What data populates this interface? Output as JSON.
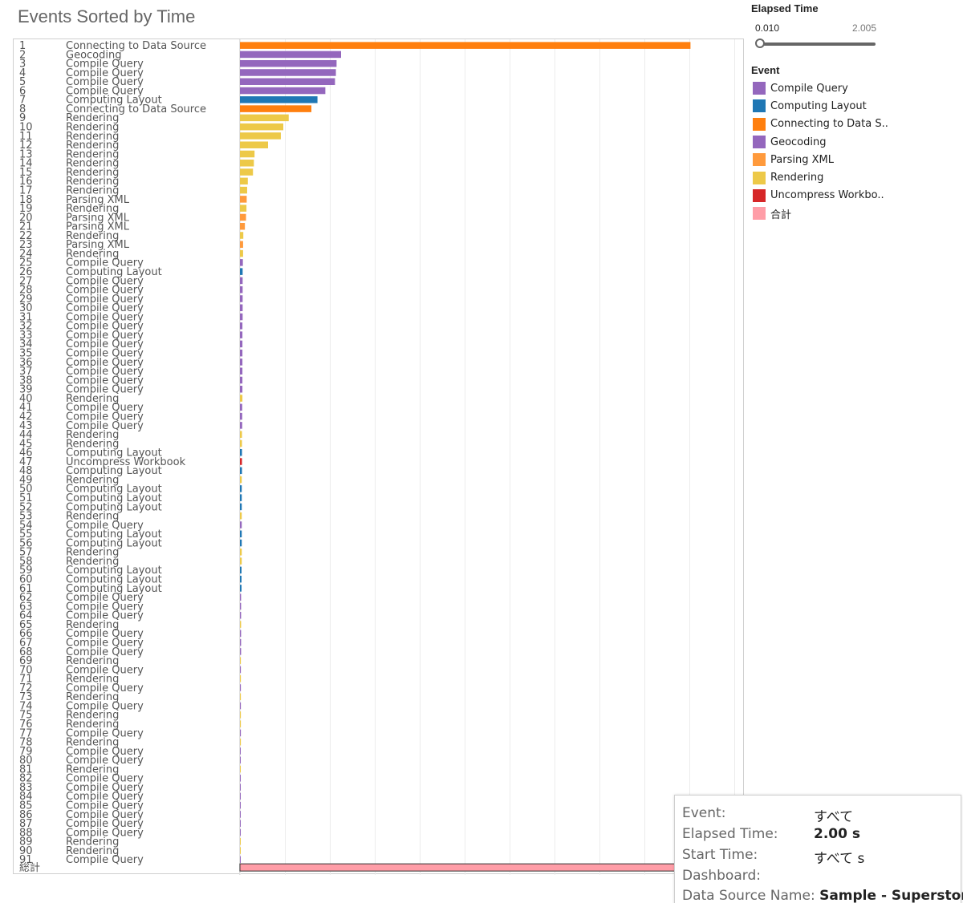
{
  "title": "Events Sorted by Time",
  "filter": {
    "title": "Elapsed Time",
    "min_label": "0.010",
    "max_label": "2.005"
  },
  "legend": {
    "title": "Event",
    "items": [
      {
        "label": "Compile Query",
        "color": "#9467bd"
      },
      {
        "label": "Computing Layout",
        "color": "#1f77b4"
      },
      {
        "label": "Connecting to Data S..",
        "color": "#ff7f0e"
      },
      {
        "label": "Geocoding",
        "color": "#9467bd"
      },
      {
        "label": "Parsing XML",
        "color": "#ff9a3c"
      },
      {
        "label": "Rendering",
        "color": "#edc948"
      },
      {
        "label": "Uncompress Workbo..",
        "color": "#d62728"
      },
      {
        "label": "合計",
        "color": "#ff9da7"
      }
    ]
  },
  "tooltip": {
    "event_label": "Event:",
    "event_value": "すべて",
    "elapsed_label": "Elapsed Time:",
    "elapsed_value": "2.00 s",
    "start_label": "Start Time:",
    "start_value": "すべて s",
    "dashboard_label": "Dashboard:",
    "dashboard_value": "",
    "datasource_label": "Data Source Name:",
    "datasource_value": "Sample - Superstore"
  },
  "chart_data": {
    "type": "bar",
    "orientation": "horizontal",
    "title": "Events Sorted by Time",
    "xlim": [
      0,
      2.2
    ],
    "grid": true,
    "event_colors": {
      "Connecting to Data Source": "#ff7f0e",
      "Geocoding": "#9467bd",
      "Compile Query": "#9467bd",
      "Computing Layout": "#1f77b4",
      "Rendering": "#edc948",
      "Parsing XML": "#ff9a3c",
      "Uncompress Workbook": "#d62728",
      "総計": "#ff9da7"
    },
    "rows": [
      {
        "rank": "1",
        "event": "Connecting to Data Source",
        "value": 2.005
      },
      {
        "rank": "2",
        "event": "Geocoding",
        "value": 0.45
      },
      {
        "rank": "3",
        "event": "Compile Query",
        "value": 0.43
      },
      {
        "rank": "4",
        "event": "Compile Query",
        "value": 0.427
      },
      {
        "rank": "5",
        "event": "Compile Query",
        "value": 0.423
      },
      {
        "rank": "6",
        "event": "Compile Query",
        "value": 0.38
      },
      {
        "rank": "7",
        "event": "Computing Layout",
        "value": 0.345
      },
      {
        "rank": "8",
        "event": "Connecting to Data Source",
        "value": 0.318
      },
      {
        "rank": "9",
        "event": "Rendering",
        "value": 0.217
      },
      {
        "rank": "10",
        "event": "Rendering",
        "value": 0.193
      },
      {
        "rank": "11",
        "event": "Rendering",
        "value": 0.182
      },
      {
        "rank": "12",
        "event": "Rendering",
        "value": 0.125
      },
      {
        "rank": "13",
        "event": "Rendering",
        "value": 0.065
      },
      {
        "rank": "14",
        "event": "Rendering",
        "value": 0.062
      },
      {
        "rank": "15",
        "event": "Rendering",
        "value": 0.058
      },
      {
        "rank": "16",
        "event": "Rendering",
        "value": 0.035
      },
      {
        "rank": "17",
        "event": "Rendering",
        "value": 0.032
      },
      {
        "rank": "18",
        "event": "Parsing XML",
        "value": 0.03
      },
      {
        "rank": "19",
        "event": "Rendering",
        "value": 0.029
      },
      {
        "rank": "20",
        "event": "Parsing XML",
        "value": 0.027
      },
      {
        "rank": "21",
        "event": "Parsing XML",
        "value": 0.022
      },
      {
        "rank": "22",
        "event": "Rendering",
        "value": 0.015
      },
      {
        "rank": "23",
        "event": "Parsing XML",
        "value": 0.014
      },
      {
        "rank": "24",
        "event": "Rendering",
        "value": 0.014
      },
      {
        "rank": "25",
        "event": "Compile Query",
        "value": 0.013
      },
      {
        "rank": "26",
        "event": "Computing Layout",
        "value": 0.012
      },
      {
        "rank": "27",
        "event": "Compile Query",
        "value": 0.012
      },
      {
        "rank": "28",
        "event": "Compile Query",
        "value": 0.012
      },
      {
        "rank": "29",
        "event": "Compile Query",
        "value": 0.012
      },
      {
        "rank": "30",
        "event": "Compile Query",
        "value": 0.012
      },
      {
        "rank": "31",
        "event": "Compile Query",
        "value": 0.012
      },
      {
        "rank": "32",
        "event": "Compile Query",
        "value": 0.011
      },
      {
        "rank": "33",
        "event": "Compile Query",
        "value": 0.011
      },
      {
        "rank": "34",
        "event": "Compile Query",
        "value": 0.011
      },
      {
        "rank": "35",
        "event": "Compile Query",
        "value": 0.011
      },
      {
        "rank": "36",
        "event": "Compile Query",
        "value": 0.011
      },
      {
        "rank": "37",
        "event": "Compile Query",
        "value": 0.011
      },
      {
        "rank": "38",
        "event": "Compile Query",
        "value": 0.011
      },
      {
        "rank": "39",
        "event": "Compile Query",
        "value": 0.011
      },
      {
        "rank": "40",
        "event": "Rendering",
        "value": 0.011
      },
      {
        "rank": "41",
        "event": "Compile Query",
        "value": 0.01
      },
      {
        "rank": "42",
        "event": "Compile Query",
        "value": 0.01
      },
      {
        "rank": "43",
        "event": "Compile Query",
        "value": 0.01
      },
      {
        "rank": "44",
        "event": "Rendering",
        "value": 0.009
      },
      {
        "rank": "45",
        "event": "Rendering",
        "value": 0.009
      },
      {
        "rank": "46",
        "event": "Computing Layout",
        "value": 0.009
      },
      {
        "rank": "47",
        "event": "Uncompress Workbook",
        "value": 0.009
      },
      {
        "rank": "48",
        "event": "Computing Layout",
        "value": 0.009
      },
      {
        "rank": "49",
        "event": "Rendering",
        "value": 0.008
      },
      {
        "rank": "50",
        "event": "Computing Layout",
        "value": 0.008
      },
      {
        "rank": "51",
        "event": "Computing Layout",
        "value": 0.008
      },
      {
        "rank": "52",
        "event": "Computing Layout",
        "value": 0.008
      },
      {
        "rank": "53",
        "event": "Rendering",
        "value": 0.008
      },
      {
        "rank": "54",
        "event": "Compile Query",
        "value": 0.008
      },
      {
        "rank": "55",
        "event": "Computing Layout",
        "value": 0.008
      },
      {
        "rank": "56",
        "event": "Computing Layout",
        "value": 0.008
      },
      {
        "rank": "57",
        "event": "Rendering",
        "value": 0.008
      },
      {
        "rank": "58",
        "event": "Rendering",
        "value": 0.008
      },
      {
        "rank": "59",
        "event": "Computing Layout",
        "value": 0.007
      },
      {
        "rank": "60",
        "event": "Computing Layout",
        "value": 0.007
      },
      {
        "rank": "61",
        "event": "Computing Layout",
        "value": 0.007
      },
      {
        "rank": "62",
        "event": "Compile Query",
        "value": 0.005
      },
      {
        "rank": "63",
        "event": "Compile Query",
        "value": 0.005
      },
      {
        "rank": "64",
        "event": "Compile Query",
        "value": 0.005
      },
      {
        "rank": "65",
        "event": "Rendering",
        "value": 0.005
      },
      {
        "rank": "66",
        "event": "Compile Query",
        "value": 0.005
      },
      {
        "rank": "67",
        "event": "Compile Query",
        "value": 0.005
      },
      {
        "rank": "68",
        "event": "Compile Query",
        "value": 0.005
      },
      {
        "rank": "69",
        "event": "Rendering",
        "value": 0.004
      },
      {
        "rank": "70",
        "event": "Compile Query",
        "value": 0.004
      },
      {
        "rank": "71",
        "event": "Rendering",
        "value": 0.004
      },
      {
        "rank": "72",
        "event": "Compile Query",
        "value": 0.004
      },
      {
        "rank": "73",
        "event": "Rendering",
        "value": 0.004
      },
      {
        "rank": "74",
        "event": "Compile Query",
        "value": 0.004
      },
      {
        "rank": "75",
        "event": "Rendering",
        "value": 0.004
      },
      {
        "rank": "76",
        "event": "Rendering",
        "value": 0.004
      },
      {
        "rank": "77",
        "event": "Compile Query",
        "value": 0.004
      },
      {
        "rank": "78",
        "event": "Rendering",
        "value": 0.004
      },
      {
        "rank": "79",
        "event": "Compile Query",
        "value": 0.002
      },
      {
        "rank": "80",
        "event": "Compile Query",
        "value": 0.002
      },
      {
        "rank": "81",
        "event": "Rendering",
        "value": 0.002
      },
      {
        "rank": "82",
        "event": "Compile Query",
        "value": 0.002
      },
      {
        "rank": "83",
        "event": "Compile Query",
        "value": 0.002
      },
      {
        "rank": "84",
        "event": "Compile Query",
        "value": 0.002
      },
      {
        "rank": "85",
        "event": "Compile Query",
        "value": 0.002
      },
      {
        "rank": "86",
        "event": "Compile Query",
        "value": 0.002
      },
      {
        "rank": "87",
        "event": "Compile Query",
        "value": 0.002
      },
      {
        "rank": "88",
        "event": "Compile Query",
        "value": 0.002
      },
      {
        "rank": "89",
        "event": "Rendering",
        "value": 0.002
      },
      {
        "rank": "90",
        "event": "Rendering",
        "value": 0.002
      },
      {
        "rank": "91",
        "event": "Compile Query",
        "value": 0.002
      },
      {
        "rank": "総計",
        "event": "",
        "value": 2.005,
        "is_total": true
      }
    ]
  }
}
